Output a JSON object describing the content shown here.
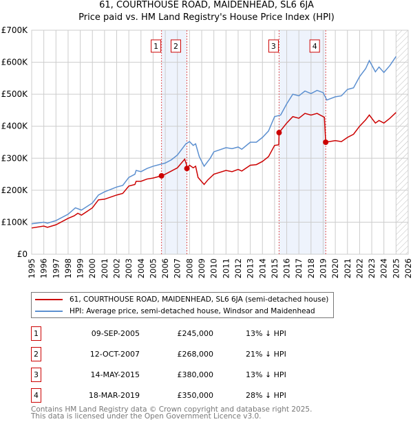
{
  "chart_data": {
    "type": "line",
    "title": "61, COURTHOUSE ROAD, MAIDENHEAD, SL6 6JA",
    "subtitle": "Price paid vs. HM Land Registry's House Price Index (HPI)",
    "xlim": [
      1995,
      2026
    ],
    "ylim": [
      0,
      700000
    ],
    "yticks": [
      {
        "v": 0,
        "l": "£0"
      },
      {
        "v": 100000,
        "l": "£100K"
      },
      {
        "v": 200000,
        "l": "£200K"
      },
      {
        "v": 300000,
        "l": "£300K"
      },
      {
        "v": 400000,
        "l": "£400K"
      },
      {
        "v": 500000,
        "l": "£500K"
      },
      {
        "v": 600000,
        "l": "£600K"
      },
      {
        "v": 700000,
        "l": "£700K"
      }
    ],
    "xticks": [
      "1995",
      "1996",
      "1997",
      "1998",
      "1999",
      "2000",
      "2001",
      "2002",
      "2003",
      "2004",
      "2005",
      "2006",
      "2007",
      "2008",
      "2009",
      "2010",
      "2011",
      "2012",
      "2013",
      "2014",
      "2015",
      "2016",
      "2017",
      "2018",
      "2019",
      "2020",
      "2021",
      "2022",
      "2023",
      "2024",
      "2025",
      "2026"
    ],
    "grid": true,
    "forecast_from": 2025.0,
    "shaded_spans": [
      [
        2005.69,
        2007.78
      ],
      [
        2015.37,
        2019.21
      ]
    ],
    "series": [
      {
        "name": "61, COURTHOUSE ROAD, MAIDENHEAD, SL6 6JA (semi-detached house)",
        "color": "#cc0000",
        "points": [
          [
            1995,
            82
          ],
          [
            1996,
            88
          ],
          [
            1996.3,
            84
          ],
          [
            1997,
            92
          ],
          [
            1998,
            112
          ],
          [
            1998.5,
            120
          ],
          [
            1998.8,
            128
          ],
          [
            1999.1,
            122
          ],
          [
            2000,
            145
          ],
          [
            2000.5,
            170
          ],
          [
            2001,
            172
          ],
          [
            2002,
            185
          ],
          [
            2002.5,
            190
          ],
          [
            2003,
            213
          ],
          [
            2003.5,
            218
          ],
          [
            2003.6,
            228
          ],
          [
            2004,
            228
          ],
          [
            2004.5,
            235
          ],
          [
            2005,
            238
          ],
          [
            2005.69,
            245
          ],
          [
            2006,
            250
          ],
          [
            2006.5,
            260
          ],
          [
            2007,
            270
          ],
          [
            2007.6,
            297
          ],
          [
            2007.75,
            280
          ],
          [
            2007.78,
            268
          ],
          [
            2008,
            278
          ],
          [
            2008.3,
            270
          ],
          [
            2008.5,
            275
          ],
          [
            2008.7,
            240
          ],
          [
            2009.2,
            218
          ],
          [
            2009.5,
            232
          ],
          [
            2010,
            250
          ],
          [
            2011,
            262
          ],
          [
            2011.5,
            258
          ],
          [
            2012,
            265
          ],
          [
            2012.3,
            260
          ],
          [
            2013,
            278
          ],
          [
            2013.5,
            280
          ],
          [
            2014,
            290
          ],
          [
            2014.5,
            305
          ],
          [
            2015,
            340
          ],
          [
            2015.35,
            342
          ],
          [
            2015.37,
            380
          ],
          [
            2016,
            410
          ],
          [
            2016.5,
            430
          ],
          [
            2017,
            425
          ],
          [
            2017.5,
            440
          ],
          [
            2018,
            435
          ],
          [
            2018.5,
            440
          ],
          [
            2019.1,
            428
          ],
          [
            2019.21,
            350
          ],
          [
            2020,
            355
          ],
          [
            2020.5,
            352
          ],
          [
            2021,
            365
          ],
          [
            2021.5,
            375
          ],
          [
            2022,
            400
          ],
          [
            2022.5,
            420
          ],
          [
            2022.8,
            435
          ],
          [
            2023.3,
            410
          ],
          [
            2023.6,
            418
          ],
          [
            2024,
            410
          ],
          [
            2024.5,
            425
          ],
          [
            2025,
            443
          ]
        ]
      },
      {
        "name": "HPI: Average price, semi-detached house, Windsor and Maidenhead",
        "color": "#5b8fd0",
        "points": [
          [
            1995,
            95
          ],
          [
            1996,
            100
          ],
          [
            1996.3,
            97
          ],
          [
            1997,
            105
          ],
          [
            1998,
            125
          ],
          [
            1998.6,
            145
          ],
          [
            1999.1,
            138
          ],
          [
            2000,
            160
          ],
          [
            2000.5,
            185
          ],
          [
            2001,
            195
          ],
          [
            2002,
            210
          ],
          [
            2002.5,
            215
          ],
          [
            2003,
            240
          ],
          [
            2003.5,
            250
          ],
          [
            2003.6,
            262
          ],
          [
            2004,
            258
          ],
          [
            2004.5,
            268
          ],
          [
            2005,
            275
          ],
          [
            2006,
            285
          ],
          [
            2006.5,
            295
          ],
          [
            2007,
            310
          ],
          [
            2007.7,
            345
          ],
          [
            2008,
            352
          ],
          [
            2008.3,
            340
          ],
          [
            2008.5,
            345
          ],
          [
            2008.8,
            305
          ],
          [
            2009.2,
            275
          ],
          [
            2009.7,
            300
          ],
          [
            2010,
            320
          ],
          [
            2011,
            333
          ],
          [
            2011.5,
            330
          ],
          [
            2012,
            335
          ],
          [
            2012.3,
            328
          ],
          [
            2013,
            350
          ],
          [
            2013.5,
            350
          ],
          [
            2014,
            365
          ],
          [
            2014.5,
            385
          ],
          [
            2015,
            430
          ],
          [
            2015.5,
            435
          ],
          [
            2016,
            470
          ],
          [
            2016.5,
            500
          ],
          [
            2017,
            495
          ],
          [
            2017.5,
            510
          ],
          [
            2018,
            502
          ],
          [
            2018.5,
            512
          ],
          [
            2019,
            505
          ],
          [
            2019.3,
            482
          ],
          [
            2020,
            492
          ],
          [
            2020.5,
            495
          ],
          [
            2021,
            515
          ],
          [
            2021.5,
            520
          ],
          [
            2022,
            555
          ],
          [
            2022.5,
            580
          ],
          [
            2022.8,
            605
          ],
          [
            2023.3,
            570
          ],
          [
            2023.6,
            585
          ],
          [
            2024,
            568
          ],
          [
            2024.5,
            590
          ],
          [
            2025,
            618
          ]
        ]
      }
    ],
    "sales": [
      {
        "n": "1",
        "x": 2005.69,
        "price": 245000,
        "date": "09-SEP-2005",
        "price_label": "£245,000",
        "hpi": "13% ↓ HPI"
      },
      {
        "n": "2",
        "x": 2007.78,
        "price": 268000,
        "date": "12-OCT-2007",
        "price_label": "£268,000",
        "hpi": "21% ↓ HPI"
      },
      {
        "n": "3",
        "x": 2015.37,
        "price": 380000,
        "date": "14-MAY-2015",
        "price_label": "£380,000",
        "hpi": "13% ↓ HPI"
      },
      {
        "n": "4",
        "x": 2019.21,
        "price": 350000,
        "date": "18-MAR-2019",
        "price_label": "£350,000",
        "hpi": "28% ↓ HPI"
      }
    ]
  },
  "legend": {
    "red": "61, COURTHOUSE ROAD, MAIDENHEAD, SL6 6JA (semi-detached house)",
    "blue": "HPI: Average price, semi-detached house, Windsor and Maidenhead"
  },
  "footer": {
    "line1": "Contains HM Land Registry data © Crown copyright and database right 2025.",
    "line2": "This data is licensed under the Open Government Licence v3.0."
  }
}
